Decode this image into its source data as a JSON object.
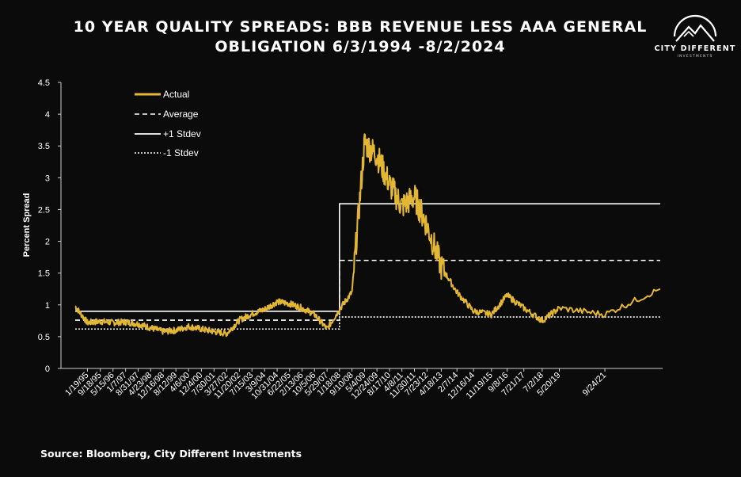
{
  "header": {
    "title_line1": "10 YEAR QUALITY SPREADS: BBB REVENUE LESS AAA GENERAL",
    "title_line2": "OBLIGATION 6/3/1994 -8/2/2024"
  },
  "logo": {
    "name": "CITY DIFFERENT",
    "sub": "INVESTMENTS",
    "icon": "mountain-circle-icon"
  },
  "footer": {
    "source": "Source: Bloomberg, City Different Investments"
  },
  "colors": {
    "background": "#0b0b0b",
    "actual": "#e3b733",
    "reference_lines": "#ffffff"
  },
  "chart_data": {
    "type": "line",
    "title": "10 YEAR QUALITY SPREADS: BBB REVENUE LESS AAA GENERAL OBLIGATION 6/3/1994 -8/2/2024",
    "xlabel": "",
    "ylabel": "Percent Spread",
    "ylim": [
      0,
      4.5
    ],
    "yticks": [
      "0",
      "0.5",
      "1",
      "1.5",
      "2",
      "2.5",
      "3",
      "3.5",
      "4",
      "4.5"
    ],
    "xticks": [
      "1/19/95",
      "9/18/95",
      "5/15/96",
      "1/7/97",
      "8/31/97",
      "4/23/98",
      "12/16/98",
      "8/12/99",
      "4/6/00",
      "12/4/00",
      "7/30/01",
      "3/27/02",
      "11/20/02",
      "7/15/03",
      "3/9/04",
      "10/31/04",
      "6/22/05",
      "2/13/06",
      "10/5/06",
      "5/29/07",
      "1/18/08",
      "9/10/08",
      "5/4/09",
      "12/24/09",
      "8/17/10",
      "4/8/11",
      "11/30/11",
      "7/23/12",
      "4/18/13",
      "2/7/14",
      "12/16/14",
      "11/19/15",
      "9/8/16",
      "7/21/17",
      "7/2/18",
      "5/20/19",
      "9/24/21"
    ],
    "grid": false,
    "legend_position": "top-left",
    "series": [
      {
        "name": "Actual",
        "style": "solid-gold",
        "x": [
          "6/3/94",
          "1/19/95",
          "9/18/95",
          "5/15/96",
          "1/7/97",
          "8/31/97",
          "4/23/98",
          "12/16/98",
          "8/12/99",
          "4/6/00",
          "12/4/00",
          "7/30/01",
          "3/27/02",
          "11/20/02",
          "7/15/03",
          "3/9/04",
          "10/31/04",
          "6/22/05",
          "2/13/06",
          "10/5/06",
          "5/29/07",
          "1/18/08",
          "9/10/08",
          "5/4/09",
          "12/24/09",
          "8/17/10",
          "4/8/11",
          "11/30/11",
          "7/23/12",
          "4/18/13",
          "2/7/14",
          "12/16/14",
          "11/19/15",
          "9/8/16",
          "7/21/17",
          "7/2/18",
          "5/20/19",
          "9/24/21",
          "8/2/24"
        ],
        "values": [
          0.98,
          0.72,
          0.74,
          0.72,
          0.73,
          0.7,
          0.64,
          0.58,
          0.6,
          0.66,
          0.62,
          0.58,
          0.55,
          0.76,
          0.86,
          0.93,
          1.05,
          1.02,
          0.95,
          0.85,
          0.62,
          0.93,
          1.2,
          3.55,
          3.35,
          2.9,
          2.55,
          2.7,
          2.25,
          1.6,
          1.2,
          0.9,
          0.85,
          1.15,
          0.95,
          0.75,
          0.95,
          0.85,
          1.25
        ]
      },
      {
        "name": "Average",
        "style": "dashed-white",
        "segments": [
          {
            "x": [
              "6/3/94",
              "1/18/08"
            ],
            "value": 0.76
          },
          {
            "x": [
              "1/18/08",
              "8/2/24"
            ],
            "value": 1.7
          }
        ]
      },
      {
        "name": "+1 Stdev",
        "style": "solid-white",
        "segments": [
          {
            "x": [
              "6/3/94",
              "1/18/08"
            ],
            "value": 0.9
          },
          {
            "x": [
              "1/18/08",
              "8/2/24"
            ],
            "value": 2.59
          }
        ]
      },
      {
        "name": "-1 Stdev",
        "style": "dotted-white",
        "segments": [
          {
            "x": [
              "6/3/94",
              "1/18/08"
            ],
            "value": 0.62
          },
          {
            "x": [
              "1/18/08",
              "8/2/24"
            ],
            "value": 0.81
          }
        ]
      }
    ]
  }
}
